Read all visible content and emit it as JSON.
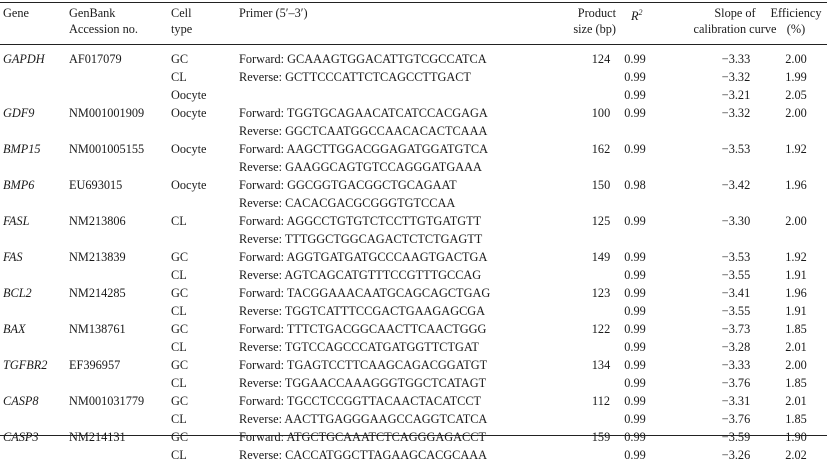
{
  "headers": {
    "gene": "Gene",
    "genbank_1": "GenBank",
    "genbank_2": "Accession no.",
    "celltype_1": "Cell",
    "celltype_2": "type",
    "primer": "Primer (5′–3′)",
    "size_1": "Product",
    "size_2": "size (bp)",
    "r2_base": "R",
    "r2_sup": "2",
    "slope_1": "Slope of",
    "slope_2": "calibration curve",
    "eff_1": "Efficiency",
    "eff_2": "(%)"
  },
  "rows": [
    {
      "gene": "GAPDH",
      "acc": "AF017079",
      "cell": "GC",
      "primer": "Forward: GCAAAGTGGACATTGTCGCCATCA",
      "size": "124",
      "r2": "0.99",
      "slope": "−3.33",
      "eff": "2.00"
    },
    {
      "gene": "",
      "acc": "",
      "cell": "CL",
      "primer": "Reverse: GCTTCCCATTCTCAGCCTTGACT",
      "size": "",
      "r2": "0.99",
      "slope": "−3.32",
      "eff": "1.99"
    },
    {
      "gene": "",
      "acc": "",
      "cell": "Oocyte",
      "primer": "",
      "size": "",
      "r2": "0.99",
      "slope": "−3.21",
      "eff": "2.05"
    },
    {
      "gene": "GDF9",
      "acc": "NM001001909",
      "cell": "Oocyte",
      "primer": "Forward: TGGTGCAGAACATCATCCACGAGA",
      "size": "100",
      "r2": "0.99",
      "slope": "−3.32",
      "eff": "2.00"
    },
    {
      "gene": "",
      "acc": "",
      "cell": "",
      "primer": "Reverse: GGCTCAATGGCCAACACACTCAAA",
      "size": "",
      "r2": "",
      "slope": "",
      "eff": ""
    },
    {
      "gene": "BMP15",
      "acc": "NM001005155",
      "cell": "Oocyte",
      "primer": "Forward: AAGCTTGGACGGAGATGGATGTCA",
      "size": "162",
      "r2": "0.99",
      "slope": "−3.53",
      "eff": "1.92"
    },
    {
      "gene": "",
      "acc": "",
      "cell": "",
      "primer": "Reverse: GAAGGCAGTGTCCAGGGATGAAA",
      "size": "",
      "r2": "",
      "slope": "",
      "eff": ""
    },
    {
      "gene": "BMP6",
      "acc": "EU693015",
      "cell": "Oocyte",
      "primer": "Forward: GGCGGTGACGGCTGCAGAAT",
      "size": "150",
      "r2": "0.98",
      "slope": "−3.42",
      "eff": "1.96"
    },
    {
      "gene": "",
      "acc": "",
      "cell": "",
      "primer": "Reverse: CACACGACGCGGGTGTCCAA",
      "size": "",
      "r2": "",
      "slope": "",
      "eff": ""
    },
    {
      "gene": "FASL",
      "acc": "NM213806",
      "cell": "CL",
      "primer": "Forward: AGGCCTGTGTCTCCTTGTGATGTT",
      "size": "125",
      "r2": "0.99",
      "slope": "−3.30",
      "eff": "2.00"
    },
    {
      "gene": "",
      "acc": "",
      "cell": "",
      "primer": "Reverse: TTTGGCTGGCAGACTCTCTGAGTT",
      "size": "",
      "r2": "",
      "slope": "",
      "eff": ""
    },
    {
      "gene": "FAS",
      "acc": "NM213839",
      "cell": "GC",
      "primer": "Forward: AGGTGATGATGCCCAAGTGACTGA",
      "size": "149",
      "r2": "0.99",
      "slope": "−3.53",
      "eff": "1.92"
    },
    {
      "gene": "",
      "acc": "",
      "cell": "CL",
      "primer": "Reverse: AGTCAGCATGTTTCCGTTTGCCAG",
      "size": "",
      "r2": "0.99",
      "slope": "−3.55",
      "eff": "1.91"
    },
    {
      "gene": "BCL2",
      "acc": "NM214285",
      "cell": "GC",
      "primer": "Forward: TACGGAAACAATGCAGCAGCTGAG",
      "size": "123",
      "r2": "0.99",
      "slope": "−3.41",
      "eff": "1.96"
    },
    {
      "gene": "",
      "acc": "",
      "cell": "CL",
      "primer": "Reverse: TGGTCATTTCCGACTGAAGAGCGA",
      "size": "",
      "r2": "0.99",
      "slope": "−3.55",
      "eff": "1.91"
    },
    {
      "gene": "BAX",
      "acc": "NM138761",
      "cell": "GC",
      "primer": "Forward: TTTCTGACGGCAACTTCAACTGGG",
      "size": "122",
      "r2": "0.99",
      "slope": "−3.73",
      "eff": "1.85"
    },
    {
      "gene": "",
      "acc": "",
      "cell": "CL",
      "primer": "Reverse: TGTCCAGCCCATGATGGTTCTGAT",
      "size": "",
      "r2": "0.99",
      "slope": "−3.28",
      "eff": "2.01"
    },
    {
      "gene": "TGFBR2",
      "acc": "EF396957",
      "cell": "GC",
      "primer": "Forward: TGAGTCCTTCAAGCAGACGGATGT",
      "size": "134",
      "r2": "0.99",
      "slope": "−3.33",
      "eff": "2.00"
    },
    {
      "gene": "",
      "acc": "",
      "cell": "CL",
      "primer": "Reverse: TGGAACCAAAGGGTGGCTCATAGT",
      "size": "",
      "r2": "0.99",
      "slope": "−3.76",
      "eff": "1.85"
    },
    {
      "gene": "CASP8",
      "acc": "NM001031779",
      "cell": "GC",
      "primer": "Forward: TGCCTCCGGTTACAACTACATCCT",
      "size": "112",
      "r2": "0.99",
      "slope": "−3.31",
      "eff": "2.01"
    },
    {
      "gene": "",
      "acc": "",
      "cell": "CL",
      "primer": "Reverse: AACTTGAGGGAAGCCAGGTCATCA",
      "size": "",
      "r2": "0.99",
      "slope": "−3.76",
      "eff": "1.85"
    },
    {
      "gene": "CASP3",
      "acc": "NM214131",
      "cell": "GC",
      "primer": "Forward: ATGCTGCAAATCTCAGGGAGACCT",
      "size": "159",
      "r2": "0.99",
      "slope": "−3.59",
      "eff": "1.90"
    },
    {
      "gene": "",
      "acc": "",
      "cell": "CL",
      "primer": "Reverse: CACCATGGCTTAGAAGCACGCAAA",
      "size": "",
      "r2": "0.99",
      "slope": "−3.26",
      "eff": "2.02"
    }
  ]
}
